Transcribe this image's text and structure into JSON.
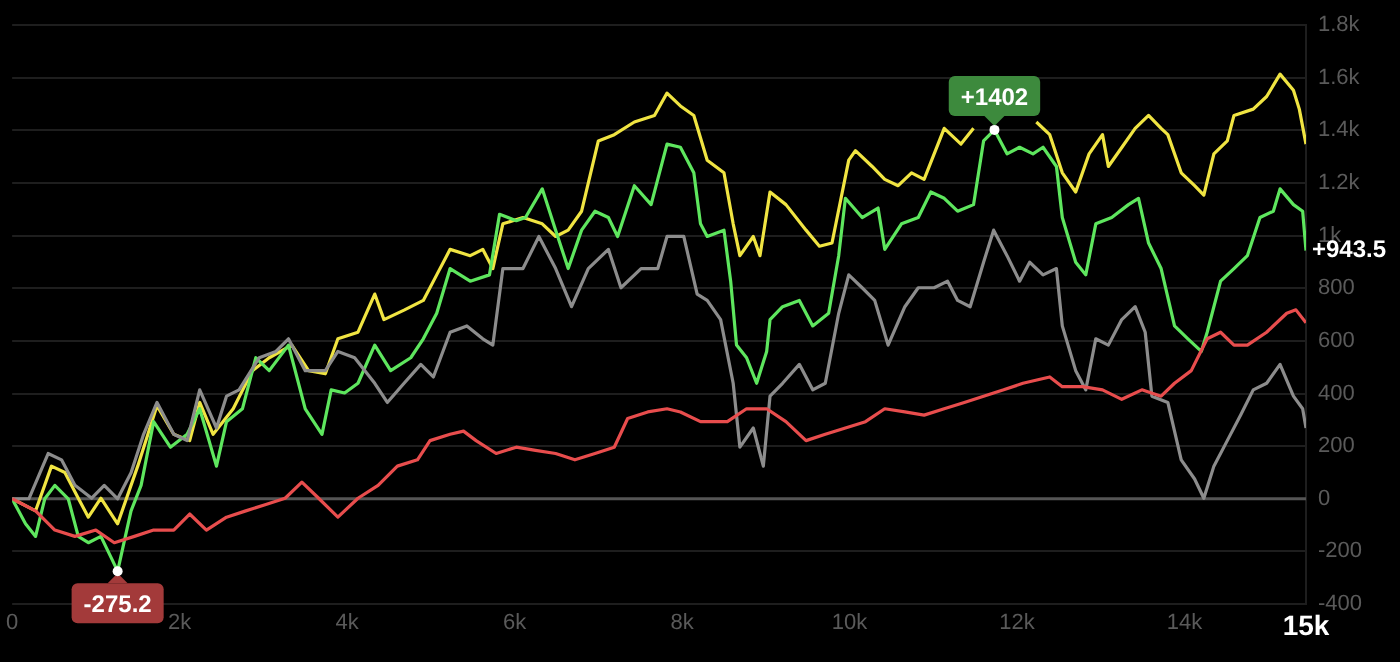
{
  "chart_data": {
    "type": "line",
    "xlim": [
      0,
      15450
    ],
    "ylim": [
      -400,
      1800
    ],
    "xticks": [
      0,
      {
        "value": 2000,
        "label": "2k"
      },
      {
        "value": 4000,
        "label": "4k"
      },
      {
        "value": 6000,
        "label": "6k"
      },
      {
        "value": 8000,
        "label": "8k"
      },
      {
        "value": 10000,
        "label": "10k"
      },
      {
        "value": 12000,
        "label": "12k"
      },
      {
        "value": 14000,
        "label": "14k"
      },
      {
        "value": 15450,
        "label": "15k"
      }
    ],
    "yticks": [
      -400,
      -200,
      0,
      200,
      400,
      600,
      800,
      {
        "value": 1000,
        "label": "1k"
      },
      {
        "value": 1200,
        "label": "1.2k"
      },
      {
        "value": 1400,
        "label": "1.4k"
      },
      {
        "value": 1600,
        "label": "1.6k"
      },
      {
        "value": 1800,
        "label": "1.8k"
      }
    ],
    "grid": "y",
    "legend": false,
    "marker": "none",
    "line_style": "solid",
    "ref_lines": [
      {
        "axis": "y",
        "value": 0,
        "color": "#555555"
      }
    ],
    "annotations": [
      {
        "text": "+1402",
        "x": 11730,
        "y": 1402
      },
      {
        "text": "-275.2",
        "x": 1260,
        "y": -275.2
      },
      {
        "text": "+943.5",
        "x": 15450,
        "y": 943.5
      }
    ],
    "series": [
      {
        "color": "#f0e442",
        "x": [
          0,
          280,
          470,
          630,
          790,
          910,
          1060,
          1260,
          1500,
          1730,
          1930,
          2120,
          2240,
          2400,
          2640,
          2870,
          3070,
          3340,
          3540,
          3740,
          3890,
          4130,
          4330,
          4440,
          4680,
          4910,
          5070,
          5230,
          5470,
          5620,
          5740,
          5860,
          6100,
          6330,
          6490,
          6640,
          6800,
          7000,
          7190,
          7430,
          7670,
          7820,
          7980,
          8140,
          8300,
          8500,
          8610,
          8690,
          8850,
          8930,
          9050,
          9240,
          9480,
          9640,
          9790,
          9990,
          10070,
          10270,
          10420,
          10580,
          10740,
          10890,
          11130,
          11330,
          11480,
          11600,
          11760,
          11920,
          12070,
          12230,
          12390,
          12540,
          12700,
          12860,
          13020,
          13090,
          13250,
          13410,
          13570,
          13720,
          13800,
          13960,
          14120,
          14230,
          14350,
          14510,
          14590,
          14820,
          14980,
          15140,
          15300,
          15370,
          15450
        ],
        "values": [
          0,
          -46,
          124,
          100,
          2,
          -70,
          2,
          -95,
          124,
          354,
          245,
          221,
          366,
          245,
          342,
          487,
          536,
          584,
          487,
          475,
          608,
          633,
          778,
          681,
          717,
          754,
          851,
          948,
          924,
          948,
          875,
          1045,
          1069,
          1045,
          997,
          1021,
          1093,
          1360,
          1384,
          1432,
          1457,
          1542,
          1493,
          1457,
          1287,
          1239,
          1045,
          924,
          997,
          924,
          1166,
          1118,
          1021,
          960,
          972,
          1287,
          1323,
          1263,
          1214,
          1190,
          1239,
          1214,
          1408,
          1348,
          1408,
          null,
          null,
          null,
          null,
          1432,
          1384,
          1239,
          1166,
          1311,
          1384,
          1263,
          1335,
          1408,
          1457,
          1408,
          1384,
          1239,
          1190,
          1154,
          1311,
          1360,
          1457,
          1481,
          1529,
          1614,
          1553,
          1481,
          1348
        ]
      },
      {
        "color": "#5ee65e",
        "x": [
          0,
          160,
          280,
          390,
          510,
          670,
          790,
          910,
          1060,
          1260,
          1420,
          1540,
          1690,
          1890,
          2090,
          2240,
          2440,
          2560,
          2750,
          2910,
          3070,
          3300,
          3500,
          3700,
          3810,
          3970,
          4130,
          4330,
          4520,
          4760,
          4910,
          5070,
          5230,
          5470,
          5700,
          5820,
          6020,
          6130,
          6330,
          6490,
          6640,
          6800,
          6960,
          7120,
          7230,
          7430,
          7630,
          7820,
          7980,
          8140,
          8220,
          8300,
          8500,
          8580,
          8650,
          8770,
          8890,
          9010,
          9050,
          9200,
          9400,
          9560,
          9750,
          9870,
          9950,
          10150,
          10340,
          10420,
          10620,
          10820,
          10970,
          11130,
          11290,
          11480,
          11600,
          11730,
          11880,
          12030,
          12190,
          12310,
          12470,
          12540,
          12700,
          12820,
          12940,
          13130,
          13330,
          13450,
          13570,
          13720,
          13880,
          14040,
          14200,
          14270,
          14430,
          14590,
          14750,
          14900,
          15060,
          15140,
          15300,
          15410,
          15450
        ],
        "values": [
          0,
          -95,
          -143,
          0,
          51,
          0,
          -143,
          -167,
          -143,
          -275.2,
          -46,
          51,
          293,
          196,
          245,
          342,
          124,
          293,
          342,
          536,
          487,
          584,
          342,
          245,
          414,
          402,
          439,
          584,
          487,
          536,
          608,
          705,
          875,
          827,
          851,
          1081,
          1057,
          1069,
          1178,
          1021,
          875,
          1021,
          1093,
          1069,
          997,
          1190,
          1118,
          1348,
          1336,
          1239,
          1045,
          997,
          1021,
          827,
          584,
          536,
          439,
          560,
          681,
          730,
          754,
          657,
          705,
          924,
          1142,
          1069,
          1105,
          948,
          1045,
          1069,
          1166,
          1142,
          1093,
          1118,
          1360,
          1402,
          1311,
          1336,
          1311,
          1336,
          1263,
          1069,
          899,
          851,
          1045,
          1069,
          1118,
          1142,
          972,
          875,
          657,
          608,
          560,
          633,
          827,
          875,
          924,
          1069,
          1093,
          1178,
          1118,
          1093,
          943.5
        ]
      },
      {
        "color": "#8c8c8c",
        "x": [
          0,
          200,
          430,
          590,
          750,
          950,
          1100,
          1260,
          1420,
          1570,
          1730,
          1930,
          2090,
          2240,
          2440,
          2560,
          2710,
          2950,
          3150,
          3300,
          3500,
          3740,
          3890,
          4090,
          4330,
          4480,
          4680,
          4880,
          5030,
          5230,
          5430,
          5620,
          5740,
          5860,
          6100,
          6290,
          6490,
          6680,
          6880,
          7120,
          7270,
          7510,
          7710,
          7820,
          8020,
          8180,
          8300,
          8460,
          8610,
          8690,
          8850,
          8970,
          9050,
          9200,
          9400,
          9560,
          9710,
          9870,
          9990,
          10150,
          10300,
          10460,
          10660,
          10820,
          11010,
          11170,
          11290,
          11440,
          11600,
          11720,
          11880,
          12030,
          12150,
          12310,
          12470,
          12540,
          12700,
          12820,
          12940,
          13090,
          13250,
          13410,
          13530,
          13610,
          13800,
          13960,
          14120,
          14230,
          14350,
          14510,
          14670,
          14820,
          14980,
          15140,
          15300,
          15410,
          15450
        ],
        "values": [
          0,
          0,
          172,
          148,
          51,
          2,
          51,
          0,
          99,
          245,
          366,
          245,
          221,
          414,
          269,
          390,
          414,
          536,
          560,
          608,
          487,
          487,
          560,
          536,
          439,
          366,
          439,
          511,
          463,
          633,
          657,
          608,
          584,
          875,
          875,
          997,
          875,
          730,
          875,
          948,
          802,
          875,
          875,
          997,
          997,
          778,
          754,
          681,
          439,
          196,
          269,
          124,
          390,
          439,
          511,
          414,
          439,
          705,
          851,
          802,
          754,
          584,
          730,
          802,
          802,
          827,
          754,
          730,
          899,
          1021,
          924,
          827,
          899,
          851,
          875,
          657,
          487,
          414,
          608,
          584,
          681,
          730,
          633,
          390,
          366,
          148,
          75,
          2,
          124,
          221,
          318,
          414,
          439,
          511,
          390,
          342,
          269
        ]
      },
      {
        "color": "#e84d4d",
        "x": [
          0,
          280,
          510,
          750,
          1000,
          1220,
          1460,
          1690,
          1930,
          2120,
          2320,
          2560,
          2790,
          3030,
          3260,
          3460,
          3660,
          3890,
          4130,
          4370,
          4600,
          4840,
          4990,
          5230,
          5390,
          5540,
          5780,
          6020,
          6250,
          6490,
          6720,
          6960,
          7190,
          7350,
          7590,
          7820,
          7980,
          8220,
          8540,
          8770,
          9010,
          9240,
          9480,
          9710,
          9950,
          10190,
          10420,
          10660,
          10890,
          11130,
          11370,
          11600,
          11840,
          12070,
          12390,
          12540,
          12780,
          13020,
          13250,
          13490,
          13720,
          13880,
          14080,
          14270,
          14430,
          14590,
          14750,
          14980,
          15220,
          15330,
          15450
        ],
        "values": [
          0,
          -46,
          -119,
          -143,
          -119,
          -167,
          -143,
          -119,
          -119,
          -58,
          -119,
          -70,
          -46,
          -22,
          2,
          63,
          2,
          -70,
          2,
          51,
          124,
          148,
          221,
          245,
          257,
          221,
          172,
          196,
          184,
          172,
          148,
          172,
          196,
          305,
          330,
          342,
          330,
          293,
          293,
          342,
          342,
          293,
          221,
          245,
          269,
          293,
          342,
          330,
          318,
          342,
          366,
          390,
          414,
          439,
          463,
          426,
          426,
          414,
          378,
          414,
          390,
          439,
          487,
          608,
          633,
          584,
          584,
          633,
          705,
          718,
          669
        ]
      }
    ]
  }
}
